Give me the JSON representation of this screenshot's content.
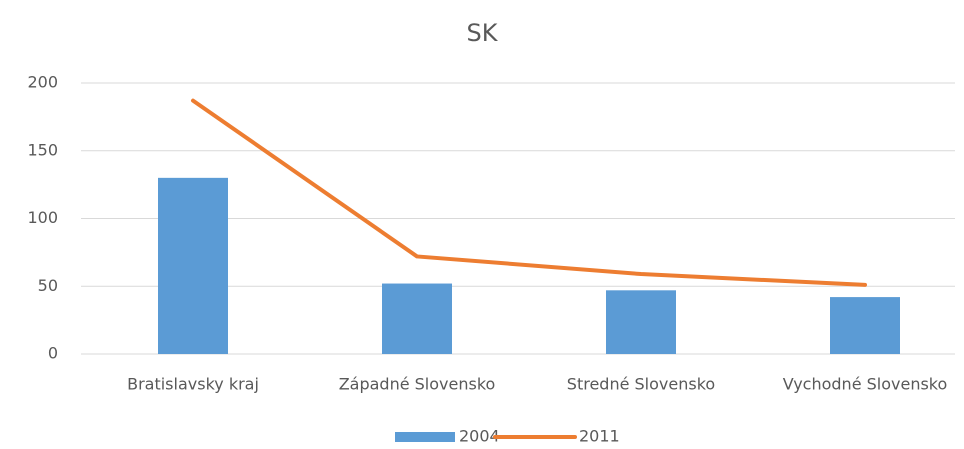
{
  "chart_data": {
    "type": "bar",
    "title": "SK",
    "categories": [
      "Bratislavsky kraj",
      "Západné Slovensko",
      "Stredné Slovensko",
      "Vychodné Slovensko"
    ],
    "series": [
      {
        "name": "2004",
        "type": "bar",
        "color": "#5b9bd5",
        "values": [
          130,
          52,
          47,
          42
        ]
      },
      {
        "name": "2011",
        "type": "line",
        "color": "#ed7d31",
        "values": [
          187,
          72,
          59,
          51
        ]
      }
    ],
    "ylim": [
      0,
      200
    ],
    "yticks": [
      0,
      50,
      100,
      150,
      200
    ],
    "grid": true,
    "legend": "bottom"
  }
}
